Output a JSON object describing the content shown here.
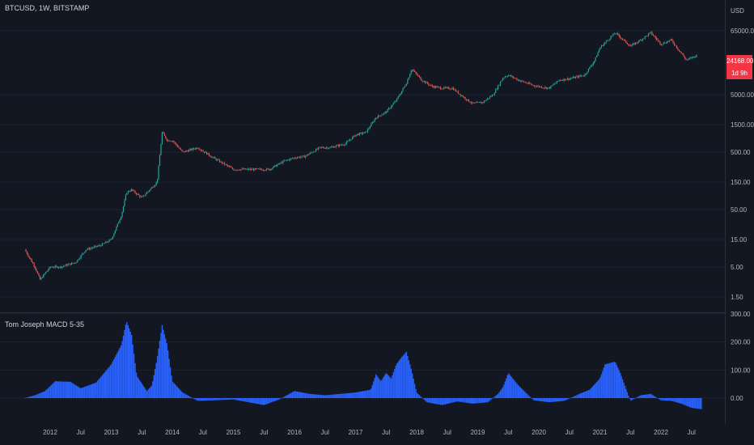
{
  "header": {
    "symbol": "BTCUSD, 1W, BITSTAMP"
  },
  "indicator": {
    "title": "Tom Joseph MACD 5-35"
  },
  "price_tag": {
    "price": "24168.00",
    "countdown": "1d 9h"
  },
  "colors": {
    "background": "#131722",
    "up": "#26a69a",
    "down": "#ef5350",
    "histogram": "#2962ff",
    "tag": "#f23645",
    "axis_text": "#b2b5be"
  },
  "chart_data": [
    {
      "type": "line",
      "subtype": "candlestick",
      "symbol": "BTCUSD",
      "interval": "1W",
      "exchange": "BITSTAMP",
      "y_scale": "log",
      "y_unit": "USD",
      "y_ticks": [
        1.5,
        5,
        15,
        50,
        150,
        500,
        1500,
        5000,
        65000
      ],
      "y_tick_labels": [
        "1.50",
        "5.00",
        "15.00",
        "50.00",
        "150.00",
        "500.00",
        "1500.00",
        "5000.00",
        "65000.00"
      ],
      "x_ticks": [
        "2012",
        "Jul",
        "2013",
        "Jul",
        "2014",
        "Jul",
        "2015",
        "Jul",
        "2016",
        "Jul",
        "2017",
        "Jul",
        "2018",
        "Jul",
        "2019",
        "Jul",
        "2020",
        "Jul",
        "2021",
        "Jul",
        "2022",
        "Jul"
      ],
      "x": [
        "2011-08",
        "2011-10",
        "2011-11",
        "2012-01",
        "2012-03",
        "2012-06",
        "2012-08",
        "2012-11",
        "2013-01",
        "2013-03",
        "2013-04",
        "2013-05",
        "2013-07",
        "2013-10",
        "2013-11",
        "2013-12",
        "2014-01",
        "2014-03",
        "2014-06",
        "2014-09",
        "2015-01",
        "2015-03",
        "2015-06",
        "2015-08",
        "2015-11",
        "2016-01",
        "2016-03",
        "2016-06",
        "2016-08",
        "2016-11",
        "2017-01",
        "2017-03",
        "2017-05",
        "2017-07",
        "2017-09",
        "2017-11",
        "2017-12",
        "2018-02",
        "2018-04",
        "2018-06",
        "2018-08",
        "2018-11",
        "2018-12",
        "2019-02",
        "2019-04",
        "2019-06",
        "2019-07",
        "2019-09",
        "2019-12",
        "2020-03",
        "2020-05",
        "2020-07",
        "2020-10",
        "2020-12",
        "2021-01",
        "2021-04",
        "2021-07",
        "2021-09",
        "2021-11",
        "2022-01",
        "2022-03",
        "2022-06",
        "2022-08"
      ],
      "close": [
        10,
        5,
        3,
        5,
        5,
        6,
        10,
        12,
        15,
        40,
        100,
        110,
        80,
        150,
        1100,
        800,
        800,
        500,
        600,
        400,
        250,
        250,
        250,
        250,
        350,
        400,
        420,
        600,
        600,
        700,
        1000,
        1100,
        2000,
        2500,
        4000,
        8000,
        14000,
        9000,
        7000,
        6500,
        6500,
        4000,
        3500,
        3700,
        5000,
        10000,
        11000,
        9000,
        7200,
        6500,
        9000,
        9500,
        11000,
        20000,
        33000,
        60000,
        35000,
        45000,
        60000,
        38000,
        45000,
        20000,
        24168
      ]
    },
    {
      "type": "bar",
      "title": "Tom Joseph MACD 5-35",
      "y_ticks": [
        0,
        100,
        200,
        300
      ],
      "y_tick_labels": [
        "0.00",
        "100.00",
        "200.00",
        "300.00"
      ],
      "x": [
        "2011-08",
        "2011-10",
        "2011-12",
        "2012-02",
        "2012-05",
        "2012-07",
        "2012-10",
        "2013-01",
        "2013-03",
        "2013-04",
        "2013-05",
        "2013-06",
        "2013-08",
        "2013-09",
        "2013-10",
        "2013-11",
        "2013-12",
        "2014-01",
        "2014-03",
        "2014-06",
        "2014-09",
        "2015-01",
        "2015-04",
        "2015-07",
        "2015-10",
        "2016-01",
        "2016-04",
        "2016-07",
        "2016-10",
        "2017-01",
        "2017-04",
        "2017-05",
        "2017-06",
        "2017-07",
        "2017-08",
        "2017-09",
        "2017-10",
        "2017-11",
        "2017-12",
        "2018-01",
        "2018-03",
        "2018-06",
        "2018-09",
        "2018-12",
        "2019-03",
        "2019-05",
        "2019-06",
        "2019-07",
        "2019-09",
        "2019-12",
        "2020-03",
        "2020-06",
        "2020-09",
        "2020-11",
        "2021-01",
        "2021-02",
        "2021-04",
        "2021-05",
        "2021-07",
        "2021-09",
        "2021-11",
        "2022-01",
        "2022-03",
        "2022-05",
        "2022-07",
        "2022-09"
      ],
      "values": [
        0,
        10,
        25,
        60,
        58,
        35,
        55,
        120,
        190,
        275,
        225,
        80,
        25,
        45,
        140,
        260,
        190,
        60,
        20,
        -10,
        -8,
        -5,
        -15,
        -25,
        -5,
        25,
        15,
        10,
        15,
        20,
        30,
        85,
        60,
        90,
        70,
        120,
        145,
        165,
        100,
        20,
        -15,
        -25,
        -12,
        -20,
        -15,
        15,
        40,
        90,
        45,
        -8,
        -15,
        -10,
        15,
        30,
        70,
        120,
        130,
        90,
        -10,
        10,
        15,
        -8,
        -10,
        -20,
        -35,
        -40
      ]
    }
  ]
}
